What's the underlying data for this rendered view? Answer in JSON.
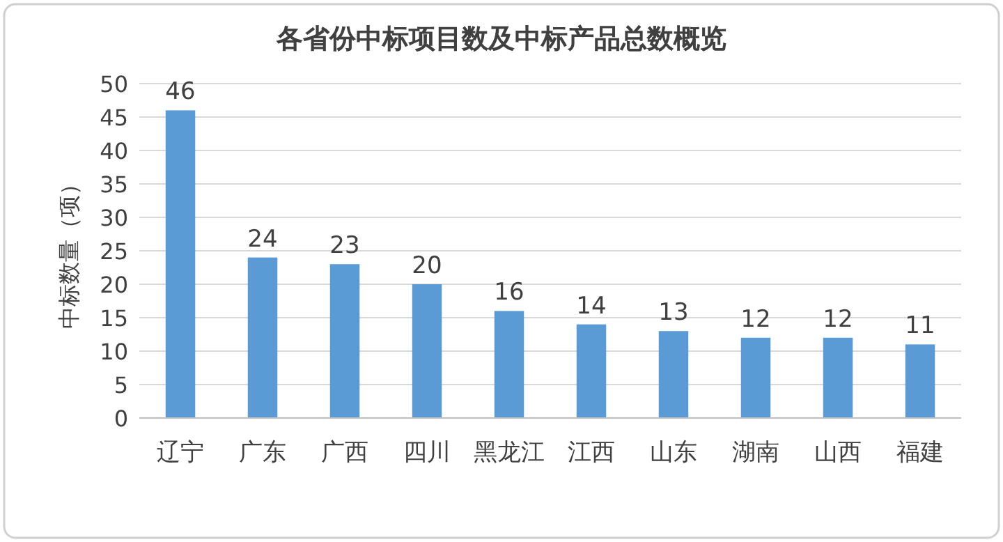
{
  "chart_data": {
    "type": "bar",
    "title": "各省份中标项目数及中标产品总数概览",
    "ylabel": "中标数量（项）",
    "categories": [
      "辽宁",
      "广东",
      "广西",
      "四川",
      "黑龙江",
      "江西",
      "山东",
      "湖南",
      "山西",
      "福建"
    ],
    "values": [
      46,
      24,
      23,
      20,
      16,
      14,
      13,
      12,
      12,
      11
    ],
    "color": "#5b9bd5",
    "ylim": [
      0,
      50
    ],
    "yticks": [
      0,
      5,
      10,
      15,
      20,
      25,
      30,
      35,
      40,
      45,
      50
    ],
    "grid": "y",
    "data_labels": true
  }
}
